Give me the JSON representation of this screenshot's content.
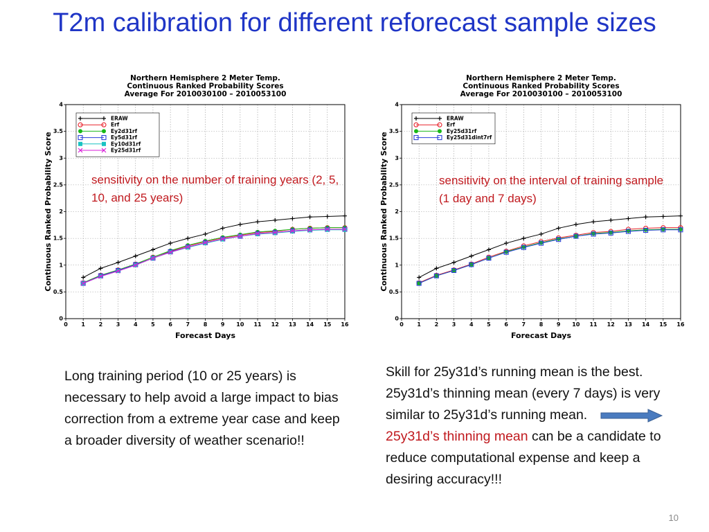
{
  "slide": {
    "title": "T2m calibration for different reforecast sample sizes",
    "page_number": "10"
  },
  "annotations": {
    "left": "sensitivity on the number of training years (2, 5, 10, and 25 years)",
    "right": "sensitivity on the interval of training sample  (1 day and 7 days)"
  },
  "text_left": "Long training period  (10 or 25 years) is necessary to help avoid a large impact to bias correction from a extreme year case and keep a broader diversity of weather scenario!!",
  "text_right": {
    "part1": "Skill for 25y31d’s running mean is the best. 25y31d’s thinning mean (every 7 days) is very similar to 25y31d’s running mean.",
    "part2_red": "25y31d’s thinning mean",
    "part3": " can be a candidate  to reduce computational expense and keep a desiring accuracy!!!"
  },
  "arrow_color": "#4a7bbf",
  "chart_data": [
    {
      "type": "line",
      "title": [
        "Northern Hemisphere 2 Meter Temp.",
        "Continuous Ranked Probability Scores",
        "Average For 2010030100 – 2010053100"
      ],
      "xlabel": "Forecast Days",
      "ylabel": "Continuous Ranked Probability Score",
      "xlim": [
        0,
        16
      ],
      "ylim": [
        0,
        4
      ],
      "x_ticks": [
        0,
        1,
        2,
        3,
        4,
        5,
        6,
        7,
        8,
        9,
        10,
        11,
        12,
        13,
        14,
        15,
        16
      ],
      "y_ticks": [
        0,
        0.5,
        1,
        1.5,
        2,
        2.5,
        3,
        3.5,
        4
      ],
      "grid": true,
      "legend_position": "top-left",
      "x": [
        1,
        2,
        3,
        4,
        5,
        6,
        7,
        8,
        9,
        10,
        11,
        12,
        13,
        14,
        15,
        16
      ],
      "series": [
        {
          "name": "ERAW",
          "color": "#000000",
          "marker": "plus",
          "values": [
            0.77,
            0.94,
            1.05,
            1.17,
            1.29,
            1.41,
            1.5,
            1.58,
            1.69,
            1.76,
            1.81,
            1.84,
            1.87,
            1.9,
            1.91,
            1.92
          ]
        },
        {
          "name": "Erf",
          "color": "#e8202a",
          "marker": "circle",
          "values": [
            0.67,
            0.81,
            0.91,
            1.02,
            1.15,
            1.26,
            1.36,
            1.44,
            1.51,
            1.56,
            1.61,
            1.63,
            1.67,
            1.69,
            1.7,
            1.7
          ]
        },
        {
          "name": "Ey2d31rf",
          "color": "#18b818",
          "marker": "dot",
          "values": [
            0.67,
            0.81,
            0.91,
            1.02,
            1.15,
            1.27,
            1.37,
            1.45,
            1.52,
            1.57,
            1.62,
            1.64,
            1.67,
            1.69,
            1.7,
            1.7
          ]
        },
        {
          "name": "Ey5d31rf",
          "color": "#2a3fd8",
          "marker": "square",
          "values": [
            0.66,
            0.8,
            0.9,
            1.01,
            1.13,
            1.25,
            1.34,
            1.42,
            1.49,
            1.54,
            1.59,
            1.61,
            1.64,
            1.66,
            1.67,
            1.67
          ]
        },
        {
          "name": "Ey10d31rf",
          "color": "#19c2c2",
          "marker": "filled-square",
          "values": [
            0.66,
            0.79,
            0.89,
            1.0,
            1.13,
            1.24,
            1.33,
            1.41,
            1.48,
            1.54,
            1.58,
            1.6,
            1.63,
            1.65,
            1.66,
            1.66
          ]
        },
        {
          "name": "Ey25d31rf",
          "color": "#d81ad8",
          "marker": "x",
          "values": [
            0.66,
            0.79,
            0.89,
            1.0,
            1.13,
            1.24,
            1.34,
            1.42,
            1.49,
            1.54,
            1.59,
            1.61,
            1.64,
            1.66,
            1.67,
            1.67
          ]
        }
      ]
    },
    {
      "type": "line",
      "title": [
        "Northern Hemisphere 2 Meter Temp.",
        "Continuous Ranked Probability Scores",
        "Average For 2010030100 – 2010053100"
      ],
      "xlabel": "Forecast Days",
      "ylabel": "Continuous Ranked Probability Score",
      "xlim": [
        0,
        16
      ],
      "ylim": [
        0,
        4
      ],
      "x_ticks": [
        0,
        1,
        2,
        3,
        4,
        5,
        6,
        7,
        8,
        9,
        10,
        11,
        12,
        13,
        14,
        15,
        16
      ],
      "y_ticks": [
        0,
        0.5,
        1,
        1.5,
        2,
        2.5,
        3,
        3.5,
        4
      ],
      "grid": true,
      "legend_position": "top-left",
      "x": [
        1,
        2,
        3,
        4,
        5,
        6,
        7,
        8,
        9,
        10,
        11,
        12,
        13,
        14,
        15,
        16
      ],
      "series": [
        {
          "name": "ERAW",
          "color": "#000000",
          "marker": "plus",
          "values": [
            0.77,
            0.94,
            1.05,
            1.17,
            1.29,
            1.41,
            1.5,
            1.58,
            1.69,
            1.76,
            1.81,
            1.84,
            1.87,
            1.9,
            1.91,
            1.92
          ]
        },
        {
          "name": "Erf",
          "color": "#e8202a",
          "marker": "circle",
          "values": [
            0.67,
            0.81,
            0.91,
            1.02,
            1.15,
            1.26,
            1.36,
            1.44,
            1.51,
            1.56,
            1.61,
            1.63,
            1.67,
            1.69,
            1.7,
            1.7
          ]
        },
        {
          "name": "Ey25d31rf",
          "color": "#18b818",
          "marker": "dot",
          "values": [
            0.66,
            0.8,
            0.9,
            1.01,
            1.13,
            1.25,
            1.34,
            1.42,
            1.49,
            1.54,
            1.59,
            1.61,
            1.64,
            1.66,
            1.67,
            1.67
          ]
        },
        {
          "name": "Ey25d31dint7rf",
          "color": "#2a3fd8",
          "marker": "square",
          "values": [
            0.66,
            0.8,
            0.9,
            1.01,
            1.13,
            1.24,
            1.33,
            1.41,
            1.48,
            1.54,
            1.58,
            1.6,
            1.63,
            1.65,
            1.66,
            1.66
          ]
        }
      ]
    }
  ]
}
